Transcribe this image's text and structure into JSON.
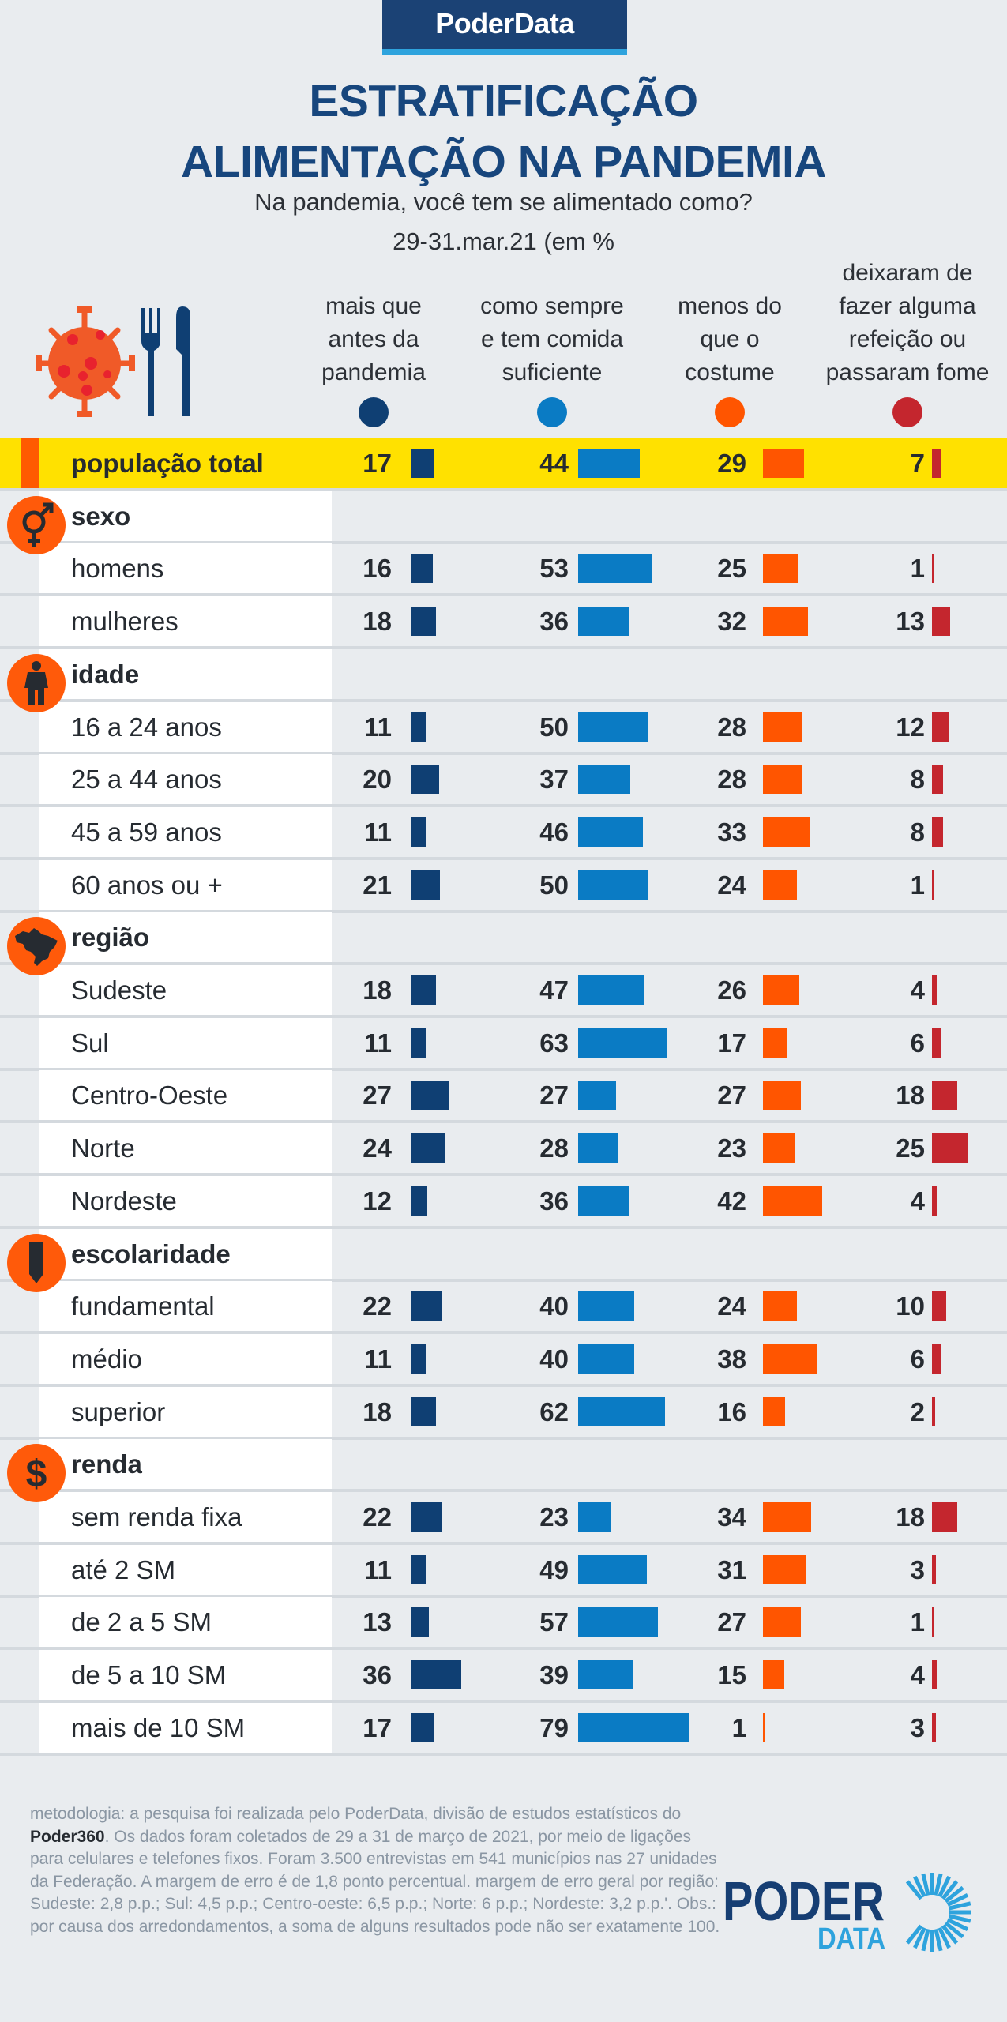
{
  "brand": "PoderData",
  "title_line1": "ESTRATIFICAÇÃO",
  "title_line2": "ALIMENTAÇÃO NA PANDEMIA",
  "subtitle": "Na pandemia, você tem se alimentado como?",
  "date": "29-31.mar.21 (em %",
  "colors": {
    "mais": "#0f3f73",
    "sempre": "#0a7bc4",
    "menos": "#ff5500",
    "fome": "#c4262e",
    "highlight": "#ffe100",
    "section_icon": "#ff5a0a"
  },
  "icons": {
    "hero": "virus-fork-knife-icon"
  },
  "chart_data": {
    "type": "table",
    "title": "ESTRATIFICAÇÃO ALIMENTAÇÃO NA PANDEMIA",
    "unit": "%",
    "columns": [
      {
        "key": "mais",
        "lines": [
          "mais que",
          "antes da",
          "pandemia"
        ]
      },
      {
        "key": "sempre",
        "lines": [
          "como sempre",
          "e tem comida",
          "suficiente"
        ]
      },
      {
        "key": "menos",
        "lines": [
          "menos do",
          "que o",
          "costume"
        ]
      },
      {
        "key": "fome",
        "lines": [
          "deixaram de",
          "fazer alguma",
          "refeição ou",
          "passaram fome"
        ]
      }
    ],
    "rows": [
      {
        "type": "total",
        "label": "população total",
        "values": [
          17,
          44,
          29,
          7
        ]
      },
      {
        "type": "section",
        "label": "sexo",
        "icon": "gender-icon"
      },
      {
        "type": "item",
        "label": "homens",
        "values": [
          16,
          53,
          25,
          1
        ]
      },
      {
        "type": "item",
        "label": "mulheres",
        "values": [
          18,
          36,
          32,
          13
        ]
      },
      {
        "type": "section",
        "label": "idade",
        "icon": "person-icon"
      },
      {
        "type": "item",
        "label": "16 a 24 anos",
        "values": [
          11,
          50,
          28,
          12
        ]
      },
      {
        "type": "item",
        "label": "25 a 44 anos",
        "values": [
          20,
          37,
          28,
          8
        ]
      },
      {
        "type": "item",
        "label": "45 a 59 anos",
        "values": [
          11,
          46,
          33,
          8
        ]
      },
      {
        "type": "item",
        "label": "60 anos ou +",
        "values": [
          21,
          50,
          24,
          1
        ]
      },
      {
        "type": "section",
        "label": "região",
        "icon": "brazil-map-icon"
      },
      {
        "type": "item",
        "label": "Sudeste",
        "values": [
          18,
          47,
          26,
          4
        ]
      },
      {
        "type": "item",
        "label": "Sul",
        "values": [
          11,
          63,
          17,
          6
        ]
      },
      {
        "type": "item",
        "label": "Centro-Oeste",
        "values": [
          27,
          27,
          27,
          18
        ]
      },
      {
        "type": "item",
        "label": "Norte",
        "values": [
          24,
          28,
          23,
          25
        ]
      },
      {
        "type": "item",
        "label": "Nordeste",
        "values": [
          12,
          36,
          42,
          4
        ]
      },
      {
        "type": "section",
        "label": "escolaridade",
        "icon": "pencil-icon"
      },
      {
        "type": "item",
        "label": "fundamental",
        "values": [
          22,
          40,
          24,
          10
        ]
      },
      {
        "type": "item",
        "label": "médio",
        "values": [
          11,
          40,
          38,
          6
        ]
      },
      {
        "type": "item",
        "label": "superior",
        "values": [
          18,
          62,
          16,
          2
        ]
      },
      {
        "type": "section",
        "label": "renda",
        "icon": "dollar-icon"
      },
      {
        "type": "item",
        "label": "sem renda fixa",
        "values": [
          22,
          23,
          34,
          18
        ]
      },
      {
        "type": "item",
        "label": "até 2 SM",
        "values": [
          11,
          49,
          31,
          3
        ]
      },
      {
        "type": "item",
        "label": "de 2 a 5 SM",
        "values": [
          13,
          57,
          27,
          1
        ]
      },
      {
        "type": "item",
        "label": "de 5 a 10 SM",
        "values": [
          36,
          39,
          15,
          4
        ]
      },
      {
        "type": "item",
        "label": "mais de 10 SM",
        "values": [
          17,
          79,
          1,
          3
        ]
      }
    ]
  },
  "footer": {
    "part1": "metodologia: a pesquisa foi realizada pelo PoderData, divisão de estudos estatísticos do ",
    "bold": "Poder360",
    "part2": ". Os dados foram coletados de 29 a 31 de março de 2021, por meio de ligações para celulares e telefones fixos. Foram 3.500 entrevistas em 541 municípios nas 27 unidades da Federação. A margem de erro é de 1,8 ponto percentual. margem de erro geral por região: Sudeste: 2,8 p.p.; Sul: 4,5 p.p.; Centro-oeste: 6,5 p.p.; Norte: 6 p.p.; Nordeste: 3,2 p.p.'. Obs.: por causa dos arredondamentos, a soma de alguns resultados pode não ser exatamente 100."
  },
  "logo": {
    "word1": "PODER",
    "word2": "DATA"
  }
}
